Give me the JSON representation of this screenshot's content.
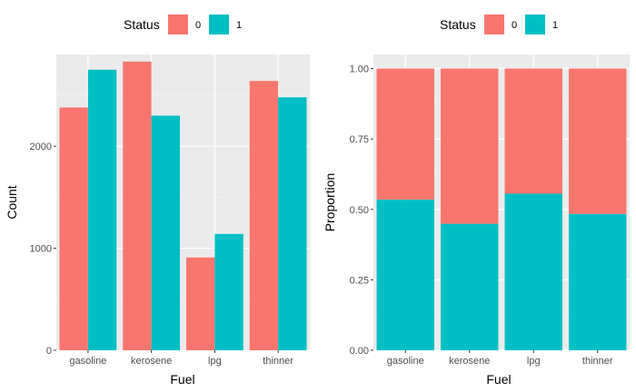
{
  "colors": {
    "status_0": "#F8766D",
    "status_1": "#00BFC4",
    "panel_bg": "#EBEBEB",
    "grid_major": "#FFFFFF",
    "grid_minor": "#F5F5F5"
  },
  "chart_data": [
    {
      "type": "bar",
      "position": "dodge",
      "title": "",
      "xlabel": "Fuel",
      "ylabel": "Count",
      "categories": [
        "gasoline",
        "kerosene",
        "lpg",
        "thinner"
      ],
      "series": [
        {
          "name": "0",
          "values": [
            2380,
            2830,
            910,
            2640
          ]
        },
        {
          "name": "1",
          "values": [
            2750,
            2300,
            1140,
            2480
          ]
        }
      ],
      "ylim": [
        0,
        2900
      ],
      "yticks": [
        0,
        1000,
        2000
      ],
      "ytick_labels": [
        "0",
        "1000",
        "2000"
      ],
      "grid": true,
      "legend": {
        "title": "Status",
        "position": "top",
        "entries": [
          "0",
          "1"
        ]
      }
    },
    {
      "type": "bar",
      "position": "stacked-proportion",
      "title": "",
      "xlabel": "Fuel",
      "ylabel": "Proportion",
      "categories": [
        "gasoline",
        "kerosene",
        "lpg",
        "thinner"
      ],
      "series": [
        {
          "name": "0",
          "values": [
            0.465,
            0.551,
            0.444,
            0.516
          ]
        },
        {
          "name": "1",
          "values": [
            0.535,
            0.449,
            0.556,
            0.484
          ]
        }
      ],
      "ylim": [
        0,
        1.05
      ],
      "yticks": [
        0,
        0.25,
        0.5,
        0.75,
        1.0
      ],
      "ytick_labels": [
        "0.00",
        "0.25",
        "0.50",
        "0.75",
        "1.00"
      ],
      "grid": true,
      "legend": {
        "title": "Status",
        "position": "top",
        "entries": [
          "0",
          "1"
        ]
      }
    }
  ]
}
